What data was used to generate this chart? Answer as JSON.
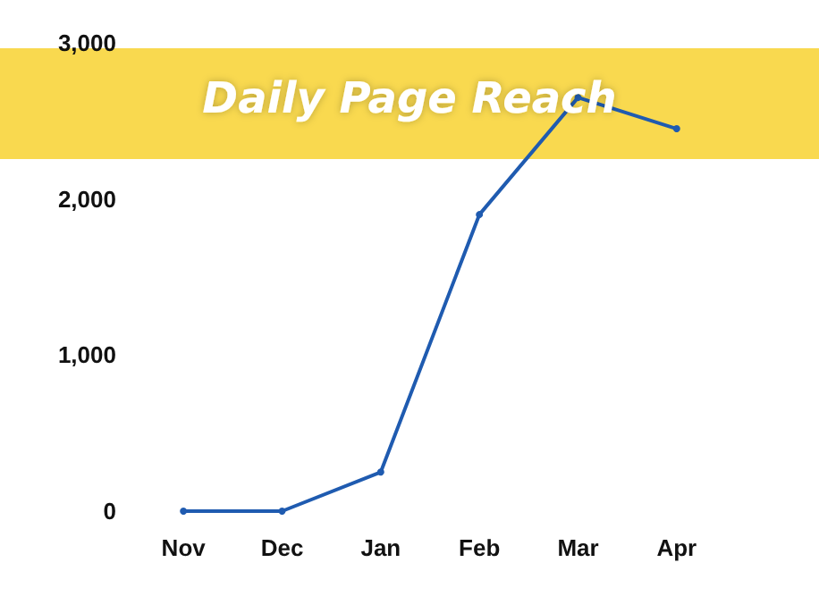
{
  "chart_data": {
    "type": "line",
    "title": "Daily Page Reach",
    "categories": [
      "Nov",
      "Dec",
      "Jan",
      "Feb",
      "Mar",
      "Apr"
    ],
    "series": [
      {
        "color": "#1f5bb0",
        "values": [
          0,
          0,
          250,
          1900,
          2650,
          2450
        ]
      }
    ],
    "ylim": [
      0,
      3000
    ],
    "yticks": [
      {
        "value": 0,
        "label": "0"
      },
      {
        "value": 1000,
        "label": "1,000"
      },
      {
        "value": 2000,
        "label": "2,000"
      },
      {
        "value": 3000,
        "label": "3,000"
      }
    ],
    "grid": false,
    "marker": "circle",
    "line_style": "solid"
  }
}
